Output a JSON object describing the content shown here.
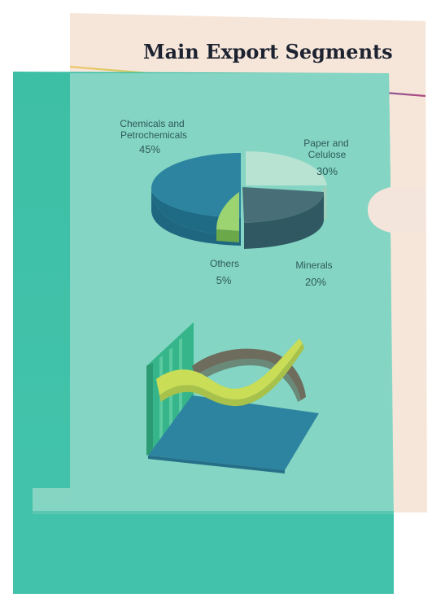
{
  "title": "Main Export Segments",
  "chart_data": {
    "type": "pie",
    "title": "Main Export Segments",
    "categories": [
      "Chemicals and Petrochemicals",
      "Paper and Celulose",
      "Minerals",
      "Others"
    ],
    "values": [
      45,
      30,
      20,
      5
    ],
    "slices": [
      {
        "label_line1": "Chemicals and",
        "label_line2": "Petrochemicals",
        "pct": "45%",
        "value": 45,
        "color": "#2c84a0"
      },
      {
        "label_line1": "Paper and",
        "label_line2": "Celulose",
        "pct": "30%",
        "value": 30,
        "color": "#b9e3d2"
      },
      {
        "label_line1": "Minerals",
        "label_line2": "",
        "pct": "20%",
        "value": 20,
        "color": "#3b6f78"
      },
      {
        "label_line1": "Others",
        "label_line2": "",
        "pct": "5%",
        "value": 5,
        "color": "#9ad36c"
      }
    ]
  },
  "colors": {
    "back_sheet": "#f7e8dc",
    "folder_teal": "#4cc5ad",
    "folder_teal_light": "#7fd6c4",
    "floor_blue": "#2d84a0",
    "back_wall_green": "#39b88a",
    "ribbon_yellow": "#c7dc55",
    "ribbon_brown": "#6c6a5c"
  }
}
